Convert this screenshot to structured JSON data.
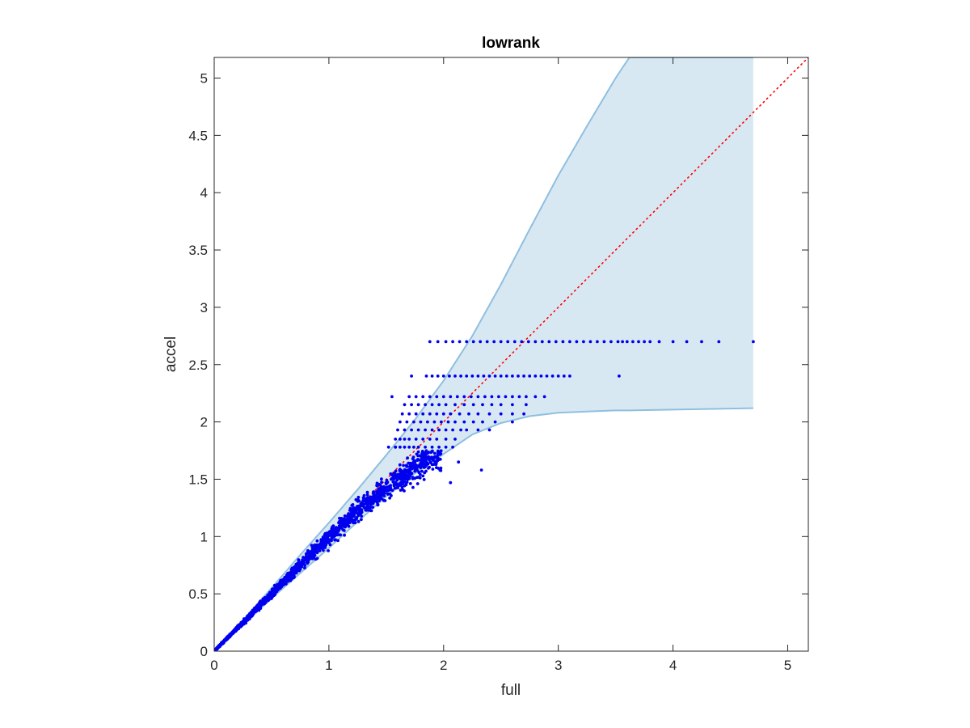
{
  "chart_data": {
    "type": "scatter",
    "title": "lowrank",
    "xlabel": "full",
    "ylabel": "accel",
    "xlim": [
      0,
      5.18
    ],
    "ylim": [
      0,
      5.18
    ],
    "xticks": [
      0,
      1,
      2,
      3,
      4,
      5
    ],
    "xtick_labels": [
      "0",
      "1",
      "2",
      "3",
      "4",
      "5"
    ],
    "yticks": [
      0,
      0.5,
      1,
      1.5,
      2,
      2.5,
      3,
      3.5,
      4,
      4.5,
      5
    ],
    "ytick_labels": [
      "0",
      "0.5",
      "1",
      "1.5",
      "2",
      "2.5",
      "3",
      "3.5",
      "4",
      "4.5",
      "5"
    ],
    "grid": false,
    "colors": {
      "points": "#0000ee",
      "band_fill": "#d8e8f3",
      "band_edge": "#8fbfdf",
      "reference_line": "#ff0000",
      "axes": "#262626"
    },
    "reference_line": {
      "style": "dotted",
      "from": [
        0,
        0
      ],
      "to": [
        5.18,
        5.18
      ]
    },
    "band": {
      "x": [
        0,
        0.25,
        0.5,
        0.75,
        1.0,
        1.25,
        1.5,
        1.75,
        2.0,
        2.25,
        2.5,
        2.75,
        3.0,
        3.25,
        3.5,
        3.62,
        4.7
      ],
      "upper": [
        0,
        0.27,
        0.55,
        0.84,
        1.12,
        1.41,
        1.71,
        2.02,
        2.36,
        2.75,
        3.2,
        3.68,
        4.15,
        4.58,
        5.0,
        5.18,
        5.18
      ],
      "lower": [
        0,
        0.23,
        0.46,
        0.68,
        0.9,
        1.13,
        1.35,
        1.55,
        1.72,
        1.89,
        1.99,
        2.05,
        2.08,
        2.09,
        2.1,
        2.1,
        2.12
      ]
    },
    "series": [
      {
        "type": "scatter",
        "cloud_segments": [
          [
            0,
            0,
            0.004
          ],
          [
            0.4,
            0.4,
            0.02
          ],
          [
            0.8,
            0.8,
            0.04
          ],
          [
            1.2,
            1.18,
            0.06
          ],
          [
            1.6,
            1.5,
            0.085
          ],
          [
            1.9,
            1.7,
            0.1
          ],
          [
            2.1,
            1.75,
            0.11
          ]
        ],
        "levels": [
          {
            "y": 1.78,
            "x": [
              1.52,
              1.58,
              1.62,
              1.66,
              1.7,
              1.74,
              1.78,
              1.84,
              1.9,
              1.96,
              2.02,
              2.08
            ]
          },
          {
            "y": 1.85,
            "x": [
              1.58,
              1.62,
              1.66,
              1.7,
              1.76,
              1.82,
              1.88,
              1.94,
              2.02,
              2.1
            ]
          },
          {
            "y": 1.93,
            "x": [
              1.6,
              1.66,
              1.72,
              1.78,
              1.84,
              1.9,
              1.96,
              2.02,
              2.08,
              2.15,
              2.2,
              2.3,
              2.4
            ]
          },
          {
            "y": 2.0,
            "x": [
              1.62,
              1.68,
              1.74,
              1.8,
              1.86,
              1.92,
              1.98,
              2.04,
              2.1,
              2.18,
              2.26,
              2.34,
              2.45,
              2.6
            ]
          },
          {
            "y": 2.07,
            "x": [
              1.64,
              1.7,
              1.76,
              1.82,
              1.88,
              1.94,
              2.0,
              2.06,
              2.14,
              2.22,
              2.3,
              2.4,
              2.5,
              2.6,
              2.7
            ]
          },
          {
            "y": 2.15,
            "x": [
              1.66,
              1.72,
              1.78,
              1.84,
              1.9,
              1.96,
              2.02,
              2.1,
              2.18,
              2.26,
              2.34,
              2.42,
              2.5,
              2.6,
              2.72
            ]
          },
          {
            "y": 2.22,
            "x": [
              1.55,
              1.7,
              1.76,
              1.82,
              1.88,
              1.94,
              2.0,
              2.06,
              2.12,
              2.18,
              2.24,
              2.3,
              2.36,
              2.42,
              2.48,
              2.54,
              2.6,
              2.66,
              2.72,
              2.8,
              2.88
            ]
          },
          {
            "y": 2.4,
            "x": [
              1.72,
              1.85,
              1.9,
              1.95,
              2.0,
              2.05,
              2.1,
              2.15,
              2.2,
              2.25,
              2.3,
              2.35,
              2.4,
              2.45,
              2.5,
              2.55,
              2.6,
              2.65,
              2.7,
              2.75,
              2.8,
              2.85,
              2.9,
              2.95,
              3.0,
              3.05,
              3.1,
              3.53
            ]
          },
          {
            "y": 2.7,
            "x": [
              1.88,
              1.95,
              2.02,
              2.08,
              2.14,
              2.2,
              2.26,
              2.32,
              2.38,
              2.44,
              2.5,
              2.56,
              2.62,
              2.68,
              2.74,
              2.8,
              2.86,
              2.92,
              2.98,
              3.04,
              3.1,
              3.16,
              3.22,
              3.28,
              3.34,
              3.4,
              3.46,
              3.52,
              3.56,
              3.6,
              3.65,
              3.7,
              3.75,
              3.8,
              3.88,
              4.0,
              4.12,
              4.25,
              4.4,
              4.7
            ]
          }
        ],
        "outliers": [
          [
            2.06,
            1.47
          ],
          [
            2.13,
            1.65
          ],
          [
            2.33,
            1.58
          ],
          [
            1.58,
            1.78
          ],
          [
            1.65,
            1.62
          ]
        ]
      }
    ]
  }
}
